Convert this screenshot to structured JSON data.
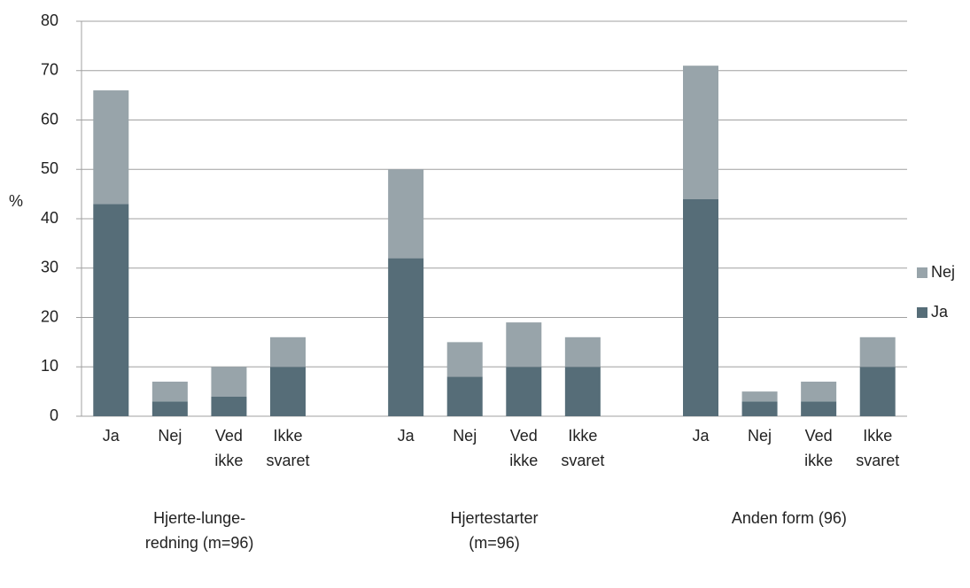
{
  "chart_data": {
    "type": "stacked-bar",
    "y_label": "%",
    "groups": [
      "Hjerte-lunge-redning (m=96)",
      "Hjertestarter (m=96)",
      "Anden form (96)"
    ],
    "categories": [
      "Ja",
      "Nej",
      "Ved ikke",
      "Ikke svaret",
      "Ja",
      "Nej",
      "Ved ikke",
      "Ikke svaret",
      "Ja",
      "Nej",
      "Ved ikke",
      "Ikke svaret"
    ],
    "series": [
      {
        "name": "Ja",
        "color": "#566d78",
        "values": [
          43,
          3,
          4,
          10,
          32,
          8,
          10,
          10,
          44,
          3,
          3,
          10
        ]
      },
      {
        "name": "Nej",
        "color": "#98a4aa",
        "values": [
          23,
          4,
          6,
          6,
          18,
          7,
          9,
          6,
          27,
          2,
          4,
          6
        ]
      }
    ],
    "ylim": [
      0,
      80
    ],
    "yticks": [
      0,
      10,
      20,
      30,
      40,
      50,
      60,
      70,
      80
    ],
    "grid": true,
    "legend": "right"
  }
}
